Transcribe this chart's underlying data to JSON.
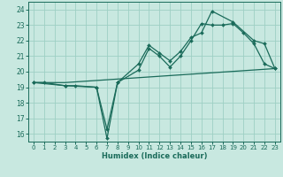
{
  "xlabel": "Humidex (Indice chaleur)",
  "xlim": [
    -0.5,
    23.5
  ],
  "ylim": [
    15.5,
    24.5
  ],
  "yticks": [
    16,
    17,
    18,
    19,
    20,
    21,
    22,
    23,
    24
  ],
  "xticks": [
    0,
    1,
    2,
    3,
    4,
    5,
    6,
    7,
    8,
    9,
    10,
    11,
    12,
    13,
    14,
    15,
    16,
    17,
    18,
    19,
    20,
    21,
    22,
    23
  ],
  "bg_color": "#c8e8e0",
  "grid_color": "#9ecfc4",
  "line_color": "#1a6b5a",
  "line1_x": [
    0,
    3,
    23
  ],
  "line1_y": [
    19.3,
    19.3,
    20.2
  ],
  "line2_x": [
    0,
    1,
    3,
    4,
    6,
    7,
    8,
    10,
    11,
    12,
    13,
    14,
    15,
    16,
    17,
    19,
    21,
    22,
    23
  ],
  "line2_y": [
    19.3,
    19.3,
    19.1,
    19.1,
    19.0,
    15.7,
    19.3,
    20.5,
    21.7,
    21.2,
    20.7,
    21.3,
    22.2,
    22.5,
    23.9,
    23.2,
    22.0,
    21.8,
    20.2
  ],
  "line3_x": [
    0,
    3,
    6,
    7,
    8,
    10,
    11,
    12,
    13,
    14,
    15,
    16,
    17,
    18,
    19,
    20,
    21,
    22,
    23
  ],
  "line3_y": [
    19.3,
    19.1,
    19.0,
    16.3,
    19.3,
    20.1,
    21.5,
    21.0,
    20.3,
    21.0,
    22.0,
    23.1,
    23.0,
    23.0,
    23.1,
    22.5,
    21.8,
    20.5,
    20.2
  ]
}
